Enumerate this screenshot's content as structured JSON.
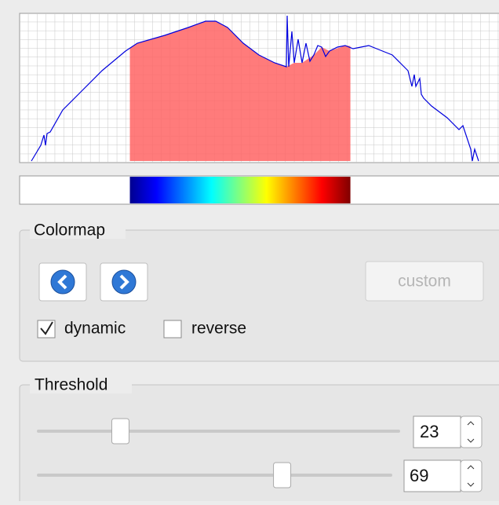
{
  "colormap": {
    "title": "Colormap",
    "custom_button": "custom",
    "dynamic": {
      "label": "dynamic",
      "checked": true
    },
    "reverse": {
      "label": "reverse",
      "checked": false
    }
  },
  "threshold": {
    "title": "Threshold",
    "range": [
      0,
      100
    ],
    "low": 23,
    "high": 69
  }
}
